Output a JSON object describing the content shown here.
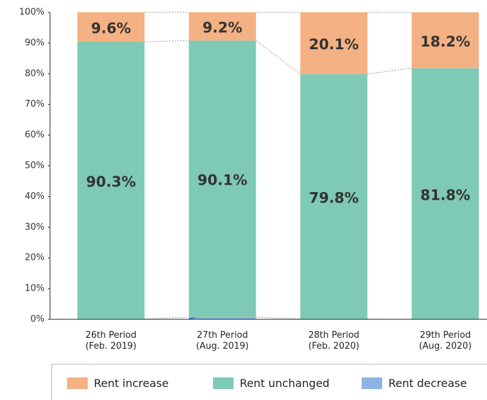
{
  "chart_data": {
    "type": "stacked_bar",
    "categories": [
      "26th Period\n(Feb. 2019)",
      "27th Period\n(Aug. 2019)",
      "28th Period\n(Feb. 2020)",
      "29th Period\n(Aug. 2020)"
    ],
    "series": [
      {
        "name": "Rent increase",
        "color": "#f4b183",
        "values": [
          9.6,
          9.2,
          20.1,
          18.2
        ],
        "value_labels": [
          "9.6%",
          "9.2%",
          "20.1%",
          "18.2%"
        ]
      },
      {
        "name": "Rent unchanged",
        "color": "#7ecab4",
        "values": [
          90.3,
          90.1,
          79.8,
          81.8
        ],
        "value_labels": [
          "90.3%",
          "90.1%",
          "79.8%",
          "81.8%"
        ]
      },
      {
        "name": "Rent decrease",
        "color": "#8db4e2",
        "values": [
          0.1,
          0.7,
          0.1,
          0.0
        ],
        "value_labels": [
          "0.1%",
          "0.7%",
          "0.1%",
          "0.0%"
        ]
      }
    ],
    "ylim": [
      0,
      100
    ],
    "yticks": [
      {
        "value": 0,
        "label": "0%"
      },
      {
        "value": 10,
        "label": "10%"
      },
      {
        "value": 20,
        "label": "20%"
      },
      {
        "value": 30,
        "label": "30%"
      },
      {
        "value": 40,
        "label": "40%"
      },
      {
        "value": 50,
        "label": "50%"
      },
      {
        "value": 60,
        "label": "60%"
      },
      {
        "value": 70,
        "label": "70%"
      },
      {
        "value": 80,
        "label": "80%"
      },
      {
        "value": 90,
        "label": "90%"
      },
      {
        "value": 100,
        "label": "100%"
      }
    ],
    "legend": "bottom"
  }
}
